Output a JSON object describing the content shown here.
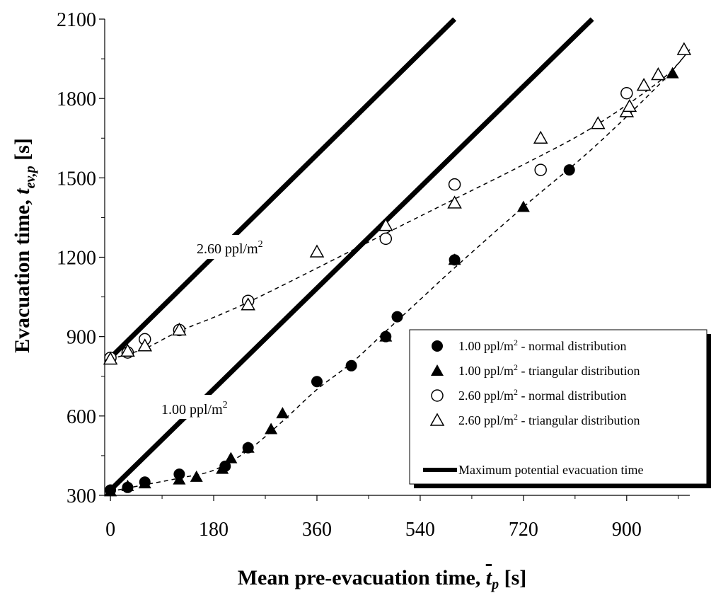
{
  "chart_data": {
    "type": "scatter",
    "title": "",
    "xlabel": "Mean pre-evacuation time,",
    "xlabel_symbol": "t",
    "xlabel_symbol_sub": "p",
    "xlabel_unit": "[s]",
    "ylabel": "Evacuation time,",
    "ylabel_symbol": "t",
    "ylabel_symbol_sub": "ev,p",
    "ylabel_unit": "[s]",
    "xlim": [
      -10,
      1010
    ],
    "ylim": [
      300,
      2100
    ],
    "xticks": [
      0,
      180,
      360,
      540,
      720,
      900
    ],
    "yticks": [
      300,
      600,
      900,
      1200,
      1500,
      1800,
      2100
    ],
    "grid": false,
    "legend_position": "bottom-right",
    "series": [
      {
        "name": "1.00 ppl/m",
        "name_sup": "2",
        "name_suffix": " - normal distribution",
        "marker": "filled-circle",
        "points": [
          [
            0,
            320
          ],
          [
            30,
            330
          ],
          [
            60,
            350
          ],
          [
            120,
            380
          ],
          [
            200,
            410
          ],
          [
            240,
            480
          ],
          [
            360,
            730
          ],
          [
            420,
            790
          ],
          [
            480,
            900
          ],
          [
            500,
            975
          ],
          [
            600,
            1190
          ],
          [
            800,
            1530
          ]
        ]
      },
      {
        "name": "1.00 ppl/m",
        "name_sup": "2",
        "name_suffix": " - triangular distribution",
        "marker": "filled-triangle",
        "points": [
          [
            0,
            315
          ],
          [
            30,
            335
          ],
          [
            60,
            345
          ],
          [
            120,
            360
          ],
          [
            150,
            370
          ],
          [
            195,
            400
          ],
          [
            210,
            440
          ],
          [
            240,
            480
          ],
          [
            280,
            550
          ],
          [
            300,
            610
          ],
          [
            480,
            900
          ],
          [
            600,
            1190
          ],
          [
            720,
            1390
          ],
          [
            900,
            1750
          ],
          [
            980,
            1895
          ]
        ]
      },
      {
        "name": "2.60 ppl/m",
        "name_sup": "2",
        "name_suffix": " - normal distribution",
        "marker": "open-circle",
        "points": [
          [
            0,
            820
          ],
          [
            30,
            840
          ],
          [
            60,
            890
          ],
          [
            120,
            925
          ],
          [
            240,
            1035
          ],
          [
            480,
            1270
          ],
          [
            600,
            1475
          ],
          [
            750,
            1530
          ],
          [
            900,
            1820
          ]
        ]
      },
      {
        "name": "2.60 ppl/m",
        "name_sup": "2",
        "name_suffix": " - triangular distribution",
        "marker": "open-triangle",
        "points": [
          [
            0,
            815
          ],
          [
            30,
            845
          ],
          [
            60,
            865
          ],
          [
            120,
            925
          ],
          [
            240,
            1020
          ],
          [
            360,
            1220
          ],
          [
            480,
            1320
          ],
          [
            600,
            1405
          ],
          [
            750,
            1650
          ],
          [
            850,
            1705
          ],
          [
            900,
            1750
          ],
          [
            905,
            1770
          ],
          [
            930,
            1850
          ],
          [
            955,
            1890
          ],
          [
            1000,
            1985
          ]
        ]
      }
    ],
    "fit_lines": [
      {
        "points": [
          [
            0,
            815
          ],
          [
            60,
            855
          ],
          [
            120,
            920
          ],
          [
            240,
            1030
          ],
          [
            480,
            1290
          ],
          [
            600,
            1420
          ],
          [
            720,
            1550
          ],
          [
            840,
            1690
          ],
          [
            960,
            1870
          ],
          [
            1010,
            1985
          ]
        ]
      },
      {
        "points": [
          [
            0,
            315
          ],
          [
            60,
            340
          ],
          [
            120,
            365
          ],
          [
            180,
            395
          ],
          [
            240,
            470
          ],
          [
            300,
            580
          ],
          [
            360,
            700
          ],
          [
            420,
            800
          ],
          [
            480,
            920
          ],
          [
            540,
            1040
          ],
          [
            600,
            1160
          ],
          [
            720,
            1390
          ],
          [
            840,
            1610
          ],
          [
            960,
            1860
          ],
          [
            1010,
            1985
          ]
        ]
      }
    ],
    "max_lines": [
      {
        "points": [
          [
            0,
            820
          ],
          [
            600,
            2100
          ]
        ]
      },
      {
        "points": [
          [
            0,
            320
          ],
          [
            840,
            2100
          ]
        ]
      }
    ],
    "annotations": [
      {
        "text": "2.60 ppl/m",
        "sup": "2"
      },
      {
        "text": "1.00 ppl/m",
        "sup": "2"
      }
    ],
    "legend_max_label": "Maximum potential evacuation time"
  }
}
